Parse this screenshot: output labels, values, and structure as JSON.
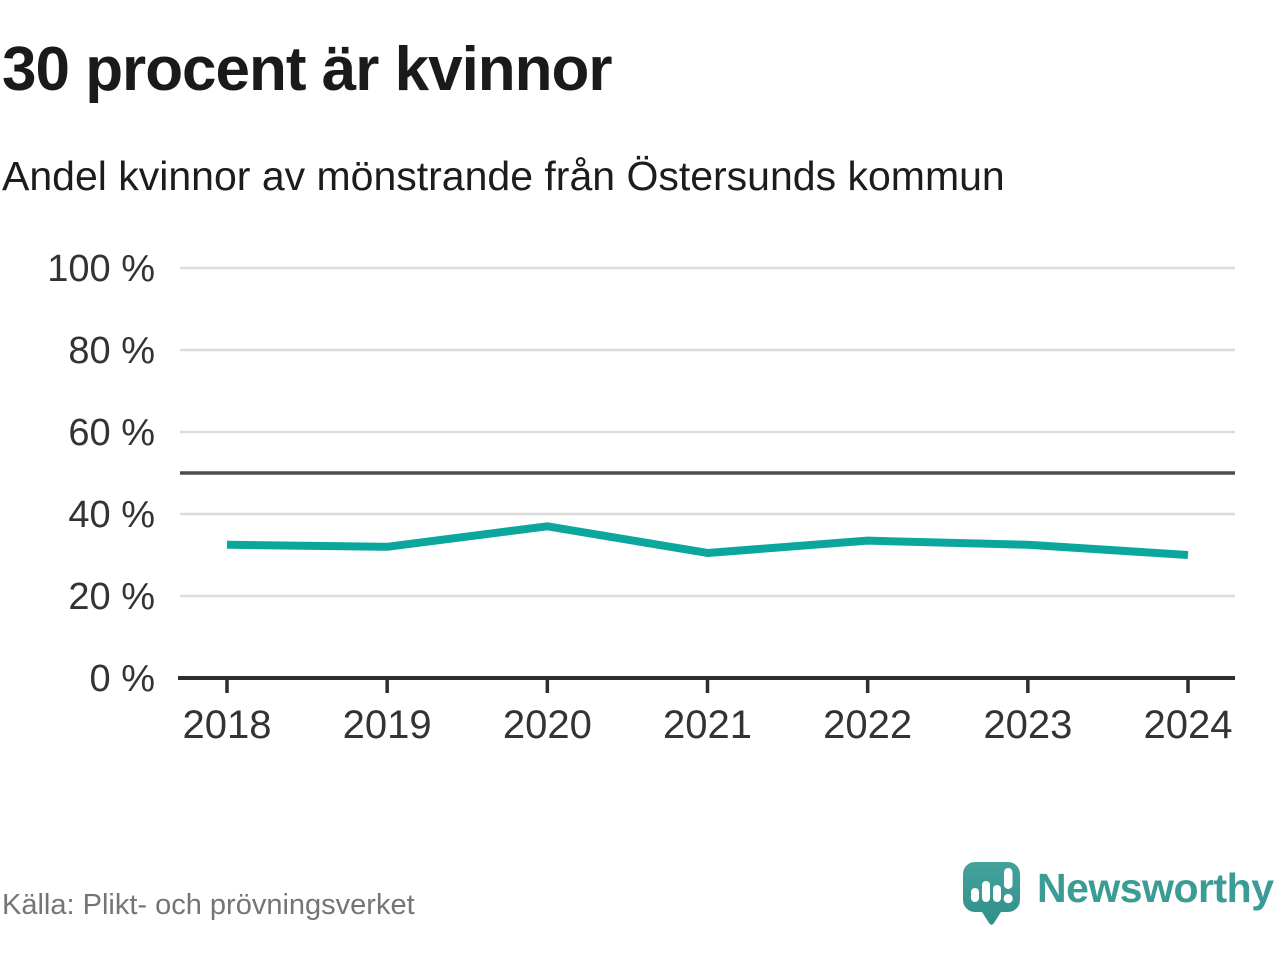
{
  "header": {
    "title": "30 procent är kvinnor",
    "subtitle": "Andel kvinnor av mönstrande från Östersunds kommun"
  },
  "chart_data": {
    "type": "line",
    "title": "30 procent är kvinnor",
    "subtitle": "Andel kvinnor av mönstrande från Östersunds kommun",
    "categories": [
      "2018",
      "2019",
      "2020",
      "2021",
      "2022",
      "2023",
      "2024"
    ],
    "values": [
      32.5,
      32,
      37,
      30.5,
      33.5,
      32.5,
      30
    ],
    "xlabel": "",
    "ylabel": "",
    "ylim": [
      0,
      100
    ],
    "yticks": [
      0,
      20,
      40,
      60,
      80,
      100
    ],
    "ytick_label_format": "{v} %",
    "reference_line_y": 50,
    "grid": "horizontal",
    "legend": "none",
    "line_color": "#0ba79d"
  },
  "footer": {
    "source": "Källa: Plikt- och prövningsverket",
    "brand": "Newsworthy"
  },
  "colors": {
    "accent_line": "#0ba79d",
    "brand_teal": "#3a9c94",
    "gridline": "#dcdcdc",
    "reference_line": "#4d4d4d",
    "axis": "#2e2e2e",
    "text_dark": "#1a1a1a",
    "text_axis": "#333333",
    "text_source": "#757575"
  }
}
